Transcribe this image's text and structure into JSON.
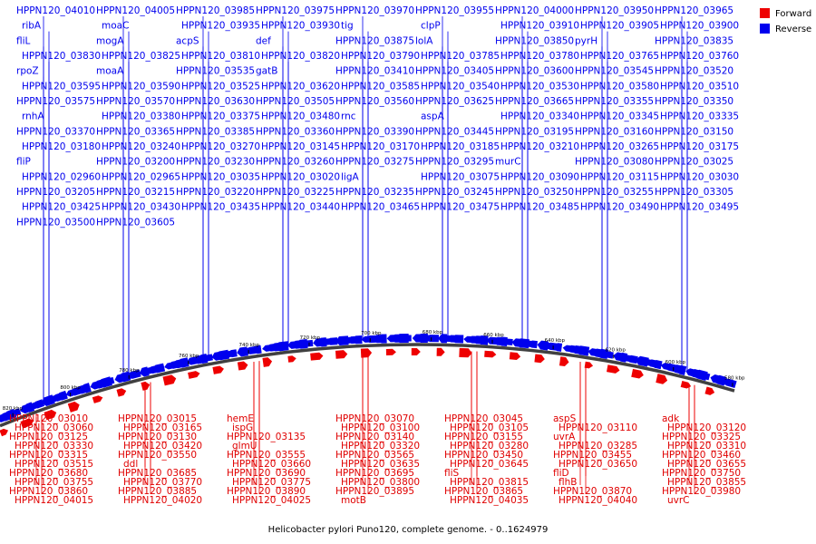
{
  "caption": "Helicobacter pylori Puno120, complete genome. - 0..1624979",
  "legend": {
    "forward": "Forward",
    "reverse": "Reverse"
  },
  "colors": {
    "forward": "#ee0000",
    "reverse": "#0000ee",
    "backbone": "#404040",
    "tick": "#000000"
  },
  "scale_ticks": [
    "580 kbp",
    "600 kbp",
    "620 kbp",
    "640 kbp",
    "660 kbp",
    "680 kbp",
    "700 kbp",
    "720 kbp",
    "740 kbp",
    "760 kbp",
    "780 kbp",
    "800 kbp",
    "820 kbp"
  ],
  "reverse_labels": [
    "HPPN120_04010",
    "HPPN120_04005",
    "HPPN120_03985",
    "HPPN120_03975",
    "HPPN120_03970",
    "HPPN120_03955",
    "HPPN120_04000",
    "HPPN120_03950",
    "HPPN120_03965",
    "ribA",
    "moaC",
    "HPPN120_03935",
    "HPPN120_03930",
    "tig",
    "clpP",
    "HPPN120_03910",
    "HPPN120_03905",
    "HPPN120_03900",
    "fliL",
    "mogA",
    "acpS",
    "def",
    "HPPN120_03875",
    "lolA",
    "HPPN120_03850",
    "pyrH",
    "HPPN120_03835",
    "HPPN120_03830",
    "HPPN120_03825",
    "HPPN120_03810",
    "HPPN120_03820",
    "HPPN120_03790",
    "HPPN120_03785",
    "HPPN120_03780",
    "HPPN120_03765",
    "HPPN120_03760",
    "rpoZ",
    "moaA",
    "HPPN120_03535",
    "gatB",
    "HPPN120_03410",
    "HPPN120_03405",
    "HPPN120_03600",
    "HPPN120_03545",
    "HPPN120_03520",
    "HPPN120_03595",
    "HPPN120_03590",
    "HPPN120_03525",
    "HPPN120_03620",
    "HPPN120_03585",
    "HPPN120_03540",
    "HPPN120_03530",
    "HPPN120_03580",
    "HPPN120_03510",
    "HPPN120_03575",
    "HPPN120_03570",
    "HPPN120_03630",
    "HPPN120_03505",
    "HPPN120_03560",
    "HPPN120_03625",
    "HPPN120_03665",
    "HPPN120_03355",
    "HPPN120_03350",
    "rnhA",
    "HPPN120_03380",
    "HPPN120_03375",
    "HPPN120_03480",
    "rnc",
    "aspA",
    "HPPN120_03340",
    "HPPN120_03345",
    "HPPN120_03335",
    "HPPN120_03370",
    "HPPN120_03365",
    "HPPN120_03385",
    "HPPN120_03360",
    "HPPN120_03390",
    "HPPN120_03445",
    "HPPN120_03195",
    "HPPN120_03160",
    "HPPN120_03150",
    "HPPN120_03180",
    "HPPN120_03240",
    "HPPN120_03270",
    "HPPN120_03145",
    "HPPN120_03170",
    "HPPN120_03185",
    "HPPN120_03210",
    "HPPN120_03265",
    "HPPN120_03175",
    "fliP",
    "HPPN120_03200",
    "HPPN120_03230",
    "HPPN120_03260",
    "HPPN120_03275",
    "HPPN120_03295",
    "murC",
    "HPPN120_03080",
    "HPPN120_03025",
    "HPPN120_02960",
    "HPPN120_02965",
    "HPPN120_03035",
    "HPPN120_03020",
    "ligA",
    "HPPN120_03075",
    "HPPN120_03090",
    "HPPN120_03115",
    "HPPN120_03030",
    "HPPN120_03205",
    "HPPN120_03215",
    "HPPN120_03220",
    "HPPN120_03225",
    "HPPN120_03235",
    "HPPN120_03245",
    "HPPN120_03250",
    "HPPN120_03255",
    "HPPN120_03305",
    "HPPN120_03425",
    "HPPN120_03430",
    "HPPN120_03435",
    "HPPN120_03440",
    "HPPN120_03465",
    "HPPN120_03475",
    "HPPN120_03485",
    "HPPN120_03490",
    "HPPN120_03495",
    "HPPN120_03500",
    "HPPN120_03605"
  ],
  "forward_labels": [
    "HPPN120_03010",
    "HPPN120_03015",
    "hemE",
    "HPPN120_03070",
    "HPPN120_03045",
    "aspS",
    "adk",
    "HPPN120_03060",
    "HPPN120_03165",
    "ispG",
    "HPPN120_03100",
    "HPPN120_03105",
    "HPPN120_03110",
    "HPPN120_03120",
    "HPPN120_03125",
    "HPPN120_03130",
    "HPPN120_03135",
    "HPPN120_03140",
    "HPPN120_03155",
    "uvrA",
    "HPPN120_03325",
    "HPPN120_03330",
    "HPPN120_03420",
    "glmU",
    "HPPN120_03320",
    "HPPN120_03280",
    "HPPN120_03285",
    "HPPN120_03310",
    "HPPN120_03315",
    "HPPN120_03550",
    "HPPN120_03555",
    "HPPN120_03565",
    "HPPN120_03450",
    "HPPN120_03455",
    "HPPN120_03460",
    "HPPN120_03515",
    "ddl",
    "HPPN120_03660",
    "HPPN120_03635",
    "HPPN120_03645",
    "HPPN120_03650",
    "HPPN120_03655",
    "HPPN120_03680",
    "HPPN120_03685",
    "HPPN120_03690",
    "HPPN120_03695",
    "fliS",
    "fliD",
    "HPPN120_03750",
    "HPPN120_03755",
    "HPPN120_03770",
    "HPPN120_03775",
    "HPPN120_03800",
    "HPPN120_03815",
    "flhB",
    "HPPN120_03855",
    "HPPN120_03860",
    "HPPN120_03885",
    "HPPN120_03890",
    "HPPN120_03895",
    "HPPN120_03865",
    "HPPN120_03870",
    "HPPN120_03980",
    "HPPN120_04015",
    "HPPN120_04020",
    "HPPN120_04025",
    "motB",
    "HPPN120_04035",
    "HPPN120_04040",
    "uvrC"
  ]
}
